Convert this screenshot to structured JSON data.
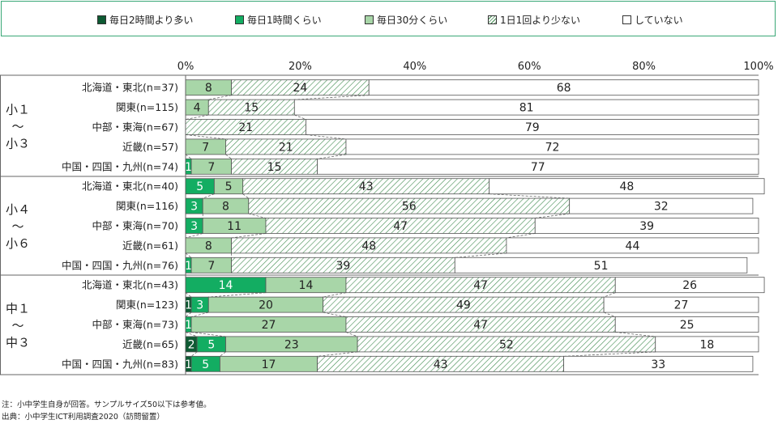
{
  "legend": [
    {
      "label": "毎日2時間より多い",
      "color": "#0e5a33",
      "pattern": "solid"
    },
    {
      "label": "毎日1時間くらい",
      "color": "#13ad62",
      "pattern": "solid"
    },
    {
      "label": "毎日30分くらい",
      "color": "#a8d6a8",
      "pattern": "solid"
    },
    {
      "label": "1日1回より少ない",
      "color": "#ffffff",
      "pattern": "hatch"
    },
    {
      "label": "していない",
      "color": "#ffffff",
      "pattern": "solid"
    }
  ],
  "chart_data": {
    "type": "bar",
    "orientation": "horizontal",
    "stacked": "100%",
    "x_ticks": [
      "0%",
      "20%",
      "40%",
      "60%",
      "80%",
      "100%"
    ],
    "xlim": [
      0,
      100
    ],
    "series_names": [
      "毎日2時間より多い",
      "毎日1時間くらい",
      "毎日30分くらい",
      "1日1回より少ない",
      "していない"
    ],
    "groups": [
      {
        "label": "小1〜小3",
        "label_lines": [
          "小１",
          "〜",
          "小３"
        ],
        "rows": [
          {
            "label": "北海道・東北(n=37)",
            "values": [
              0,
              0,
              8,
              24,
              68
            ]
          },
          {
            "label": "関東(n=115)",
            "values": [
              0,
              0,
              4,
              15,
              81
            ]
          },
          {
            "label": "中部・東海(n=67)",
            "values": [
              0,
              0,
              0,
              21,
              79
            ]
          },
          {
            "label": "近畿(n=57)",
            "values": [
              0,
              0,
              7,
              21,
              72
            ]
          },
          {
            "label": "中国・四国・九州(n=74)",
            "values": [
              0,
              1,
              7,
              15,
              77
            ]
          }
        ]
      },
      {
        "label": "小4〜小6",
        "label_lines": [
          "小４",
          "〜",
          "小６"
        ],
        "rows": [
          {
            "label": "北海道・東北(n=40)",
            "values": [
              0,
              5,
              5,
              43,
              48
            ]
          },
          {
            "label": "関東(n=116)",
            "values": [
              0,
              3,
              8,
              56,
              32
            ]
          },
          {
            "label": "中部・東海(n=70)",
            "values": [
              0,
              3,
              11,
              47,
              39
            ]
          },
          {
            "label": "近畿(n=61)",
            "values": [
              0,
              0,
              8,
              48,
              44
            ]
          },
          {
            "label": "中国・四国・九州(n=76)",
            "values": [
              0,
              1,
              7,
              39,
              51
            ]
          }
        ]
      },
      {
        "label": "中1〜中3",
        "label_lines": [
          "中１",
          "〜",
          "中３"
        ],
        "rows": [
          {
            "label": "北海道・東北(n=43)",
            "values": [
              0,
              14,
              14,
              47,
              26
            ]
          },
          {
            "label": "関東(n=123)",
            "values": [
              1,
              3,
              20,
              49,
              27
            ]
          },
          {
            "label": "中部・東海(n=73)",
            "values": [
              0,
              1,
              27,
              47,
              25
            ]
          },
          {
            "label": "近畿(n=65)",
            "values": [
              2,
              5,
              23,
              52,
              18
            ]
          },
          {
            "label": "中国・四国・九州(n=83)",
            "values": [
              1,
              5,
              17,
              43,
              33
            ]
          }
        ]
      }
    ]
  },
  "footnotes": {
    "note": "注：小中学生自身が回答。サンプルサイズ50以下は参考値。",
    "source": "出典：小中学生ICT利用調査2020（訪問留置）"
  }
}
